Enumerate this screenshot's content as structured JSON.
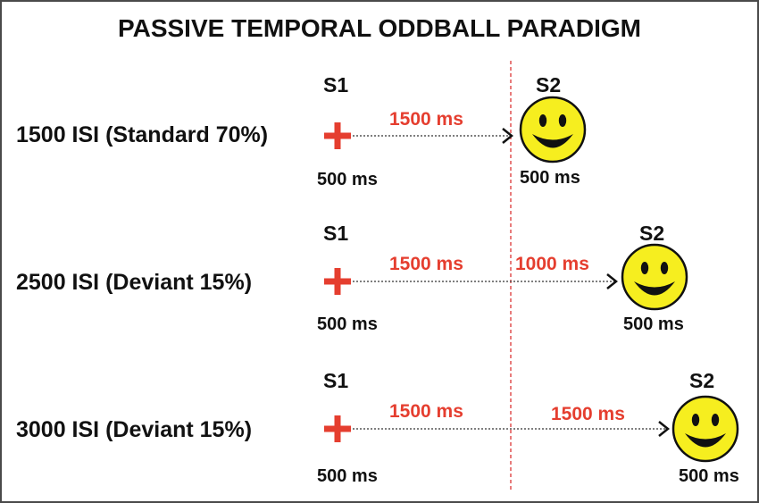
{
  "title": "PASSIVE TEMPORAL ODDBALL PARADIGM",
  "colors": {
    "accent_red": "#e53e2f",
    "face_yellow": "#f6ee1f",
    "text": "#111111",
    "divider": "#e05050"
  },
  "icons": {
    "fixation": "red-plus-icon",
    "stimulus": "smiley-face-icon"
  },
  "rows": [
    {
      "condition": "1500 ISI (Standard 70%)",
      "s1_label": "S1",
      "s1_duration": "500 ms",
      "interval_1": "1500 ms",
      "interval_2": "",
      "s2_label": "S2",
      "s2_duration": "500 ms"
    },
    {
      "condition": "2500 ISI (Deviant 15%)",
      "s1_label": "S1",
      "s1_duration": "500 ms",
      "interval_1": "1500 ms",
      "interval_2": "1000 ms",
      "s2_label": "S2",
      "s2_duration": "500 ms"
    },
    {
      "condition": "3000 ISI (Deviant 15%)",
      "s1_label": "S1",
      "s1_duration": "500 ms",
      "interval_1": "1500 ms",
      "interval_2": "1500 ms",
      "s2_label": "S2",
      "s2_duration": "500 ms"
    }
  ]
}
